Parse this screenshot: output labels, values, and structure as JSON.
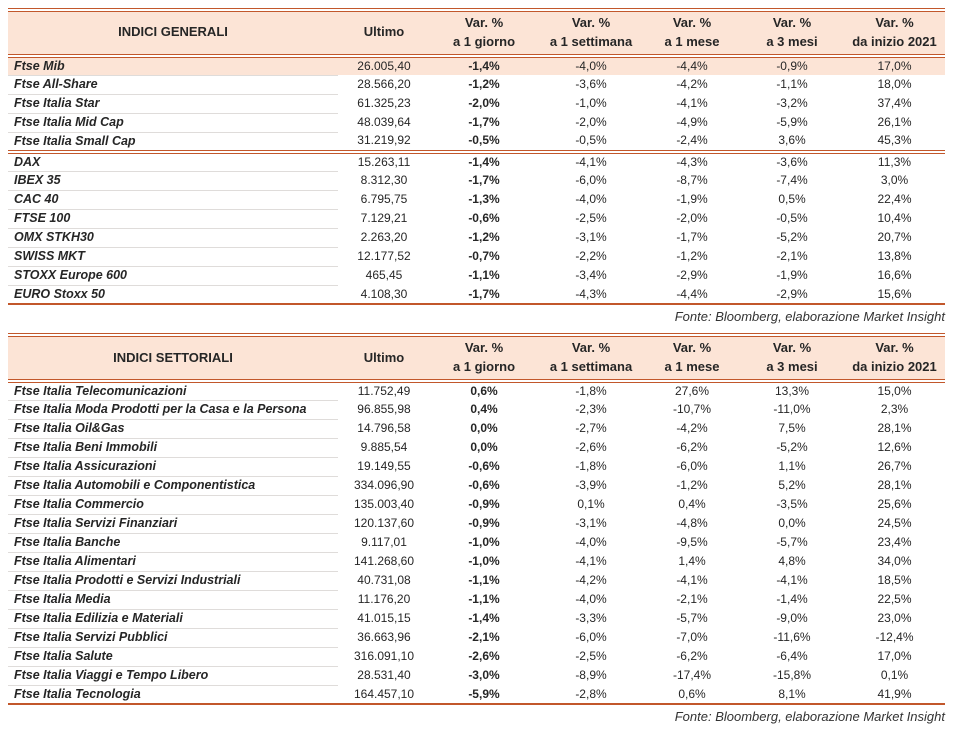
{
  "colors": {
    "header_bg": "#fce4d6",
    "highlight_row_bg": "#fce4d6",
    "table_border": "#c2572b",
    "row_divider": "#dfdcda",
    "text": "#262626"
  },
  "tables": [
    {
      "title": "INDICI GENERALI",
      "cols": [
        {
          "l1": "Ultimo",
          "l2": ""
        },
        {
          "l1": "Var. %",
          "l2": "a 1 giorno"
        },
        {
          "l1": "Var. %",
          "l2": "a 1 settimana"
        },
        {
          "l1": "Var. %",
          "l2": "a 1 mese"
        },
        {
          "l1": "Var. %",
          "l2": "a 3 mesi"
        },
        {
          "l1": "Var. %",
          "l2": "da inizio 2021"
        }
      ],
      "groups": [
        {
          "rows": [
            {
              "name": "Ftse Mib",
              "highlight": true,
              "values": [
                "26.005,40",
                "-1,4%",
                "-4,0%",
                "-4,4%",
                "-0,9%",
                "17,0%"
              ]
            },
            {
              "name": "Ftse All-Share",
              "values": [
                "28.566,20",
                "-1,2%",
                "-3,6%",
                "-4,2%",
                "-1,1%",
                "18,0%"
              ]
            },
            {
              "name": "Ftse Italia Star",
              "values": [
                "61.325,23",
                "-2,0%",
                "-1,0%",
                "-4,1%",
                "-3,2%",
                "37,4%"
              ]
            },
            {
              "name": "Ftse Italia Mid Cap",
              "values": [
                "48.039,64",
                "-1,7%",
                "-2,0%",
                "-4,9%",
                "-5,9%",
                "26,1%"
              ]
            },
            {
              "name": "Ftse Italia Small Cap",
              "values": [
                "31.219,92",
                "-0,5%",
                "-0,5%",
                "-2,4%",
                "3,6%",
                "45,3%"
              ]
            }
          ]
        },
        {
          "rows": [
            {
              "name": "DAX",
              "values": [
                "15.263,11",
                "-1,4%",
                "-4,1%",
                "-4,3%",
                "-3,6%",
                "11,3%"
              ]
            },
            {
              "name": "IBEX 35",
              "values": [
                "8.312,30",
                "-1,7%",
                "-6,0%",
                "-8,7%",
                "-7,4%",
                "3,0%"
              ]
            },
            {
              "name": "CAC 40",
              "values": [
                "6.795,75",
                "-1,3%",
                "-4,0%",
                "-1,9%",
                "0,5%",
                "22,4%"
              ]
            },
            {
              "name": "FTSE 100",
              "values": [
                "7.129,21",
                "-0,6%",
                "-2,5%",
                "-2,0%",
                "-0,5%",
                "10,4%"
              ]
            },
            {
              "name": "OMX STKH30",
              "values": [
                "2.263,20",
                "-1,2%",
                "-3,1%",
                "-1,7%",
                "-5,2%",
                "20,7%"
              ]
            },
            {
              "name": "SWISS MKT",
              "values": [
                "12.177,52",
                "-0,7%",
                "-2,2%",
                "-1,2%",
                "-2,1%",
                "13,8%"
              ]
            },
            {
              "name": "STOXX Europe 600",
              "values": [
                "465,45",
                "-1,1%",
                "-3,4%",
                "-2,9%",
                "-1,9%",
                "16,6%"
              ]
            },
            {
              "name": "EURO Stoxx 50",
              "values": [
                "4.108,30",
                "-1,7%",
                "-4,3%",
                "-4,4%",
                "-2,9%",
                "15,6%"
              ]
            }
          ]
        }
      ],
      "fonte": "Fonte: Bloomberg, elaborazione Market Insight"
    },
    {
      "title": "INDICI SETTORIALI",
      "cols": [
        {
          "l1": "Ultimo",
          "l2": ""
        },
        {
          "l1": "Var. %",
          "l2": "a 1 giorno"
        },
        {
          "l1": "Var. %",
          "l2": "a 1 settimana"
        },
        {
          "l1": "Var. %",
          "l2": "a 1 mese"
        },
        {
          "l1": "Var. %",
          "l2": "a 3 mesi"
        },
        {
          "l1": "Var. %",
          "l2": "da inizio 2021"
        }
      ],
      "groups": [
        {
          "rows": [
            {
              "name": "Ftse Italia Telecomunicazioni",
              "values": [
                "11.752,49",
                "0,6%",
                "-1,8%",
                "27,6%",
                "13,3%",
                "15,0%"
              ]
            },
            {
              "name": "Ftse Italia Moda Prodotti per la Casa e la Persona",
              "values": [
                "96.855,98",
                "0,4%",
                "-2,3%",
                "-10,7%",
                "-11,0%",
                "2,3%"
              ]
            },
            {
              "name": "Ftse Italia Oil&Gas",
              "values": [
                "14.796,58",
                "0,0%",
                "-2,7%",
                "-4,2%",
                "7,5%",
                "28,1%"
              ]
            },
            {
              "name": "Ftse Italia Beni Immobili",
              "values": [
                "9.885,54",
                "0,0%",
                "-2,6%",
                "-6,2%",
                "-5,2%",
                "12,6%"
              ]
            },
            {
              "name": "Ftse Italia Assicurazioni",
              "values": [
                "19.149,55",
                "-0,6%",
                "-1,8%",
                "-6,0%",
                "1,1%",
                "26,7%"
              ]
            },
            {
              "name": "Ftse Italia Automobili e Componentistica",
              "values": [
                "334.096,90",
                "-0,6%",
                "-3,9%",
                "-1,2%",
                "5,2%",
                "28,1%"
              ]
            },
            {
              "name": "Ftse Italia Commercio",
              "values": [
                "135.003,40",
                "-0,9%",
                "0,1%",
                "0,4%",
                "-3,5%",
                "25,6%"
              ]
            },
            {
              "name": "Ftse Italia Servizi Finanziari",
              "values": [
                "120.137,60",
                "-0,9%",
                "-3,1%",
                "-4,8%",
                "0,0%",
                "24,5%"
              ]
            },
            {
              "name": "Ftse Italia Banche",
              "values": [
                "9.117,01",
                "-1,0%",
                "-4,0%",
                "-9,5%",
                "-5,7%",
                "23,4%"
              ]
            },
            {
              "name": "Ftse Italia Alimentari",
              "values": [
                "141.268,60",
                "-1,0%",
                "-4,1%",
                "1,4%",
                "4,8%",
                "34,0%"
              ]
            },
            {
              "name": "Ftse Italia Prodotti e Servizi Industriali",
              "values": [
                "40.731,08",
                "-1,1%",
                "-4,2%",
                "-4,1%",
                "-4,1%",
                "18,5%"
              ]
            },
            {
              "name": "Ftse Italia Media",
              "values": [
                "11.176,20",
                "-1,1%",
                "-4,0%",
                "-2,1%",
                "-1,4%",
                "22,5%"
              ]
            },
            {
              "name": "Ftse Italia Edilizia e Materiali",
              "values": [
                "41.015,15",
                "-1,4%",
                "-3,3%",
                "-5,7%",
                "-9,0%",
                "23,0%"
              ]
            },
            {
              "name": "Ftse Italia Servizi Pubblici",
              "values": [
                "36.663,96",
                "-2,1%",
                "-6,0%",
                "-7,0%",
                "-11,6%",
                "-12,4%"
              ]
            },
            {
              "name": "Ftse Italia Salute",
              "values": [
                "316.091,10",
                "-2,6%",
                "-2,5%",
                "-6,2%",
                "-6,4%",
                "17,0%"
              ]
            },
            {
              "name": "Ftse Italia Viaggi e Tempo Libero",
              "values": [
                "28.531,40",
                "-3,0%",
                "-8,9%",
                "-17,4%",
                "-15,8%",
                "0,1%"
              ]
            },
            {
              "name": "Ftse Italia Tecnologia",
              "values": [
                "164.457,10",
                "-5,9%",
                "-2,8%",
                "0,6%",
                "8,1%",
                "41,9%"
              ]
            }
          ]
        }
      ],
      "fonte": "Fonte: Bloomberg, elaborazione Market Insight"
    }
  ]
}
